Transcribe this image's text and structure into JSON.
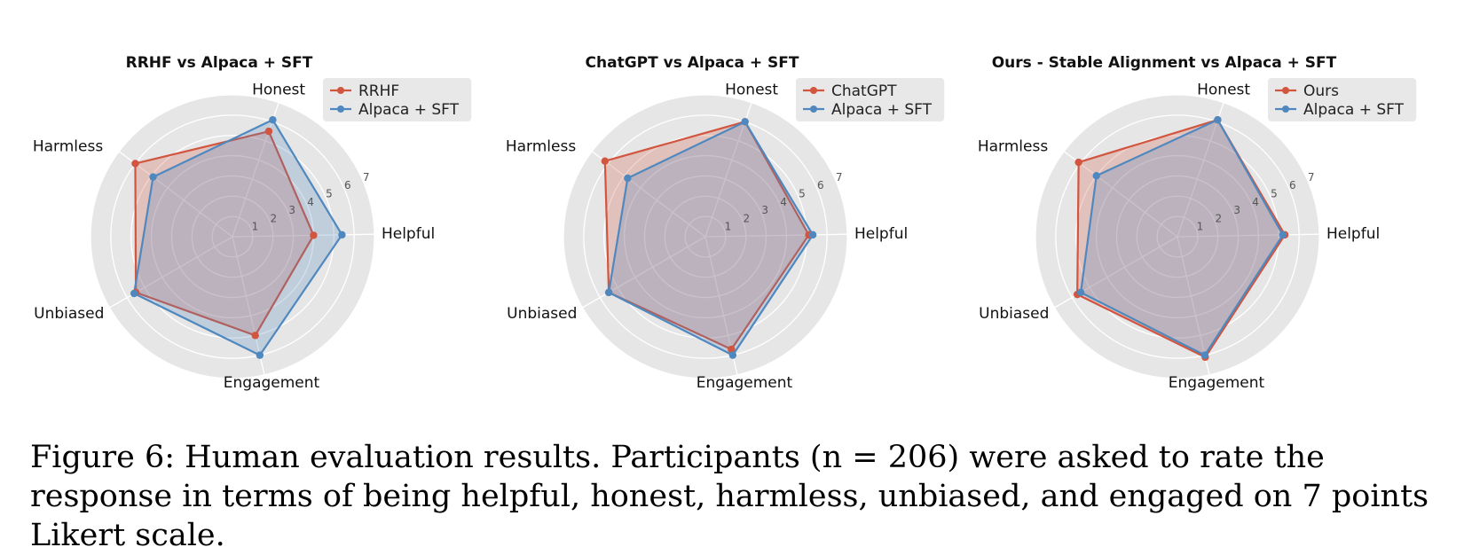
{
  "figure": {
    "caption": "Figure 6: Human evaluation results. Participants (n = 206) were asked to rate the response in terms of being helpful, honest, harmless, unbiased, and engaged on 7 points Likert scale."
  },
  "colors": {
    "red": "#d1553f",
    "blue": "#4f88bf",
    "panel_bg": "#e6e6e6",
    "grid": "#ffffff"
  },
  "chart_data": [
    {
      "type": "radar",
      "title": "RRHF vs Alpaca + SFT",
      "axes": [
        "Honest",
        "Harmless",
        "Unbiased",
        "Engagement",
        "Helpful"
      ],
      "rlim": [
        0,
        7
      ],
      "r_ticks": [
        "1",
        "2",
        "3",
        "4",
        "5",
        "6",
        "7"
      ],
      "grid": true,
      "legend_position": "top-right",
      "series": [
        {
          "name": "RRHF",
          "color": "#d1553f",
          "values": [
            5.5,
            6.0,
            5.5,
            5.0,
            4.0
          ]
        },
        {
          "name": "Alpaca + SFT",
          "color": "#4f88bf",
          "values": [
            6.1,
            4.9,
            5.6,
            6.0,
            5.4
          ]
        }
      ]
    },
    {
      "type": "radar",
      "title": "ChatGPT vs Alpaca + SFT",
      "axes": [
        "Honest",
        "Harmless",
        "Unbiased",
        "Engagement",
        "Helpful"
      ],
      "rlim": [
        0,
        7
      ],
      "r_ticks": [
        "1",
        "2",
        "3",
        "4",
        "5",
        "6",
        "7"
      ],
      "grid": true,
      "legend_position": "top-right",
      "series": [
        {
          "name": "ChatGPT",
          "color": "#d1553f",
          "values": [
            6.0,
            6.2,
            5.5,
            5.7,
            5.1
          ]
        },
        {
          "name": "Alpaca + SFT",
          "color": "#4f88bf",
          "values": [
            6.0,
            4.8,
            5.5,
            6.0,
            5.3
          ]
        }
      ]
    },
    {
      "type": "radar",
      "title": "Ours - Stable Alignment vs Alpaca + SFT",
      "axes": [
        "Honest",
        "Harmless",
        "Unbiased",
        "Engagement",
        "Helpful"
      ],
      "rlim": [
        0,
        7
      ],
      "r_ticks": [
        "1",
        "2",
        "3",
        "4",
        "5",
        "6",
        "7"
      ],
      "grid": true,
      "legend_position": "top-right",
      "series": [
        {
          "name": "Ours",
          "color": "#d1553f",
          "values": [
            6.1,
            6.1,
            5.7,
            6.1,
            5.3
          ]
        },
        {
          "name": "Alpaca + SFT",
          "color": "#4f88bf",
          "values": [
            6.1,
            5.0,
            5.5,
            6.0,
            5.2
          ]
        }
      ]
    }
  ]
}
